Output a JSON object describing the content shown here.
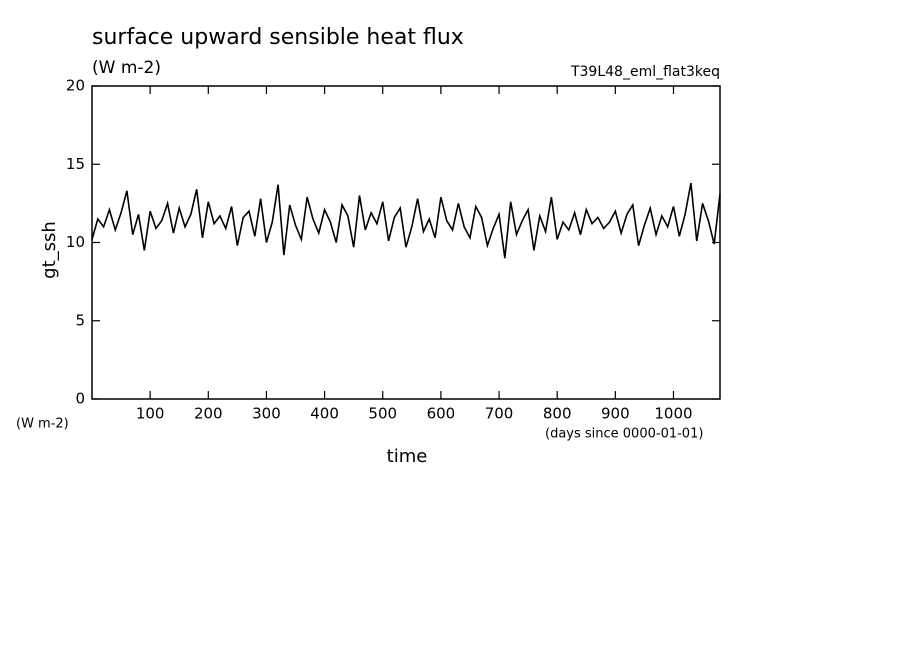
{
  "chart_data": {
    "type": "line",
    "title": "surface upward sensible heat flux",
    "subtitle": "(W m-2)",
    "annotation": "T39L48_eml_flat3keq",
    "y_axis_label": "gt_ssh",
    "y_unit_label": "(W m-2)",
    "x_axis_label": "time",
    "x_unit_label": "(days since 0000-01-01)",
    "x": [
      0,
      10,
      20,
      30,
      40,
      50,
      60,
      70,
      80,
      90,
      100,
      110,
      120,
      130,
      140,
      150,
      160,
      170,
      180,
      190,
      200,
      210,
      220,
      230,
      240,
      250,
      260,
      270,
      280,
      290,
      300,
      310,
      320,
      330,
      340,
      350,
      360,
      370,
      380,
      390,
      400,
      410,
      420,
      430,
      440,
      450,
      460,
      470,
      480,
      490,
      500,
      510,
      520,
      530,
      540,
      550,
      560,
      570,
      580,
      590,
      600,
      610,
      620,
      630,
      640,
      650,
      660,
      670,
      680,
      690,
      700,
      710,
      720,
      730,
      740,
      750,
      760,
      770,
      780,
      790,
      800,
      810,
      820,
      830,
      840,
      850,
      860,
      870,
      880,
      890,
      900,
      910,
      920,
      930,
      940,
      950,
      960,
      970,
      980,
      990,
      1000,
      1010,
      1020,
      1030,
      1040,
      1050,
      1060,
      1070,
      1080
    ],
    "series": [
      {
        "name": "gt_ssh",
        "color": "#000000",
        "values": [
          10.2,
          11.5,
          11.0,
          12.1,
          10.8,
          11.9,
          13.3,
          10.5,
          11.8,
          9.5,
          12.0,
          10.9,
          11.4,
          12.5,
          10.6,
          12.2,
          11.0,
          11.8,
          13.4,
          10.3,
          12.6,
          11.2,
          11.7,
          10.9,
          12.3,
          9.8,
          11.6,
          12.0,
          10.4,
          12.8,
          10.0,
          11.3,
          13.7,
          9.2,
          12.4,
          11.1,
          10.2,
          12.9,
          11.5,
          10.6,
          12.1,
          11.3,
          10.0,
          12.4,
          11.7,
          9.7,
          13.0,
          10.8,
          11.9,
          11.2,
          12.6,
          10.1,
          11.6,
          12.2,
          9.7,
          11.0,
          12.8,
          10.7,
          11.5,
          10.3,
          12.9,
          11.4,
          10.8,
          12.5,
          11.0,
          10.3,
          12.3,
          11.6,
          9.8,
          10.9,
          11.8,
          9.0,
          12.6,
          10.5,
          11.4,
          12.1,
          9.5,
          11.7,
          10.7,
          12.9,
          10.2,
          11.3,
          10.8,
          11.9,
          10.5,
          12.1,
          11.2,
          11.6,
          10.9,
          11.3,
          12.0,
          10.6,
          11.8,
          12.4,
          9.8,
          11.1,
          12.2,
          10.5,
          11.7,
          11.0,
          12.3,
          10.4,
          11.8,
          13.8,
          10.1,
          12.5,
          11.4,
          9.9,
          13.1
        ]
      }
    ],
    "xlim": [
      0,
      1080
    ],
    "xticks": [
      100,
      200,
      300,
      400,
      500,
      600,
      700,
      800,
      900,
      1000
    ],
    "ylim": [
      0,
      20
    ],
    "yticks": [
      0,
      5,
      10,
      15,
      20
    ]
  }
}
